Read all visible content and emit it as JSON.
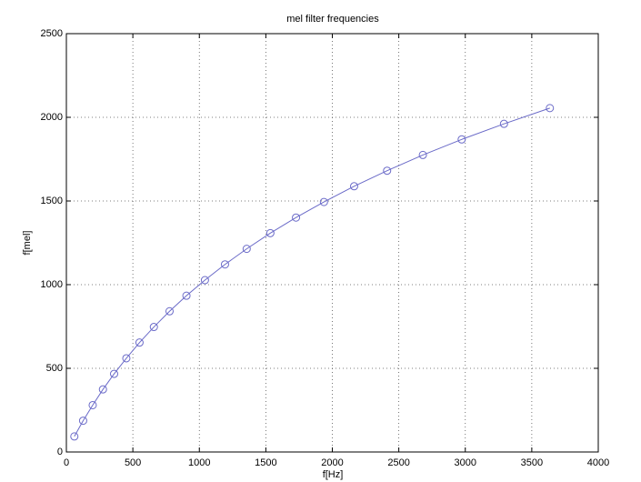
{
  "chart_data": {
    "type": "line",
    "title": "mel filter frequencies",
    "x_label": "f[Hz]",
    "y_label": "f[mel]",
    "series": [
      {
        "color": "#6a6ac8",
        "marker": "circle",
        "x": [
          60,
          126,
          198,
          275,
          359,
          451,
          550,
          658,
          776,
          903,
          1042,
          1193,
          1356,
          1534,
          1727,
          1937,
          2164,
          2412,
          2681,
          2973,
          3291,
          3636
        ],
        "values": [
          93,
          187,
          280,
          374,
          467,
          560,
          654,
          747,
          841,
          934,
          1027,
          1121,
          1214,
          1308,
          1401,
          1494,
          1588,
          1681,
          1775,
          1868,
          1961,
          2055
        ]
      }
    ],
    "xlim": [
      0,
      4000
    ],
    "xticks": [
      0,
      500,
      1000,
      1500,
      2000,
      2500,
      3000,
      3500,
      4000
    ],
    "ylim": [
      0,
      2500
    ],
    "yticks": [
      0,
      500,
      1000,
      1500,
      2000,
      2500
    ],
    "grid": true
  }
}
